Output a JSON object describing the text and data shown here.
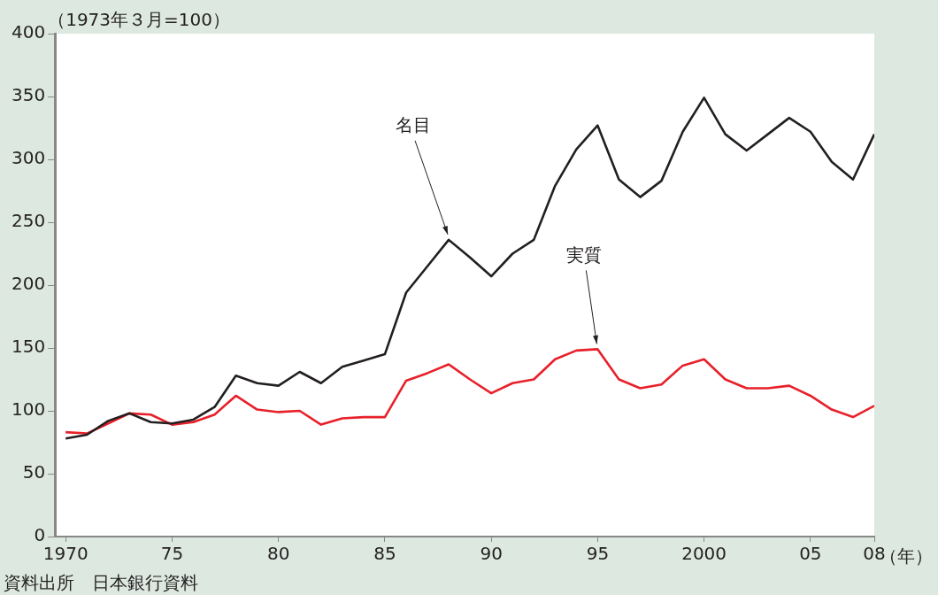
{
  "chart_data": {
    "type": "line",
    "ylabel": "（1973年３月=100）",
    "xlabel": "（年）",
    "x": [
      1970,
      1971,
      1972,
      1973,
      1974,
      1975,
      1976,
      1977,
      1978,
      1979,
      1980,
      1981,
      1982,
      1983,
      1984,
      1985,
      1986,
      1987,
      1988,
      1989,
      1990,
      1991,
      1992,
      1993,
      1994,
      1995,
      1996,
      1997,
      1998,
      1999,
      2000,
      2001,
      2002,
      2003,
      2004,
      2005,
      2006,
      2007,
      2008
    ],
    "series": [
      {
        "color": "#231f20",
        "values": [
          78,
          81,
          92,
          98,
          91,
          90,
          93,
          103,
          128,
          122,
          120,
          131,
          122,
          135,
          140,
          145,
          194,
          215,
          236,
          222,
          207,
          225,
          236,
          279,
          308,
          327,
          284,
          270,
          283,
          322,
          349,
          320,
          307,
          320,
          333,
          322,
          298,
          284,
          320
        ]
      },
      {
        "color": "#e8202a",
        "values": [
          83,
          82,
          90,
          98,
          97,
          89,
          91,
          97,
          112,
          101,
          99,
          100,
          89,
          94,
          95,
          95,
          124,
          130,
          137,
          125,
          114,
          122,
          125,
          141,
          148,
          149,
          125,
          118,
          121,
          136,
          141,
          125,
          118,
          118,
          120,
          112,
          101,
          95,
          104
        ]
      }
    ],
    "annotations": [
      {
        "text": "名目",
        "x": 1988,
        "y": 236
      },
      {
        "text": "実質",
        "x": 1995,
        "y": 149
      },
      "資料出所　日本銀行資料"
    ],
    "xlim": [
      1969.5,
      2008
    ],
    "xticks": [
      1970,
      {
        "value": 1975,
        "label": "75"
      },
      {
        "value": 1980,
        "label": "80"
      },
      {
        "value": 1985,
        "label": "85"
      },
      {
        "value": 1990,
        "label": "90"
      },
      {
        "value": 1995,
        "label": "95"
      },
      2000,
      {
        "value": 2005,
        "label": "05"
      },
      {
        "value": 2008,
        "label": "08"
      }
    ],
    "ylim": [
      0,
      400
    ],
    "yticks": [
      0,
      50,
      100,
      150,
      200,
      250,
      300,
      350,
      400
    ],
    "grid": false,
    "legend": false,
    "marker": "none",
    "line_style": "solid"
  }
}
